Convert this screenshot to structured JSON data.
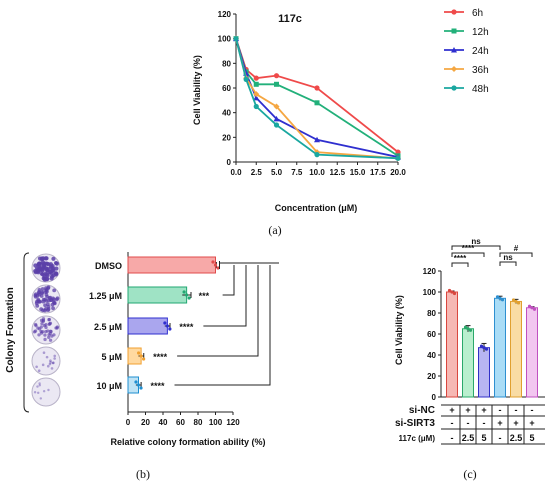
{
  "panel_labels": [
    "(a)",
    "(b)",
    "(c)"
  ],
  "colors": {
    "h6": "#ef4a4a",
    "h12": "#22b07a",
    "h24": "#2f2fcf",
    "h36": "#f5a742",
    "h48": "#1aa7a0",
    "dmso": "#f7a9a8",
    "c125": "#9fe3c5",
    "c25": "#aaa6ee",
    "c5": "#ffd9a0",
    "c10": "#bfe3f5",
    "cNC": "#f6b8b4",
    "cNC25": "#b9efce",
    "cNC5": "#b7b5f2",
    "cS": "#a9dcf6",
    "cS25": "#f9dca4",
    "cS5": "#f2c6f0"
  },
  "chart_data": [
    {
      "type": "line",
      "title": "117c",
      "xlabel": "Concentration (μM)",
      "ylabel": "Cell Viability (%)",
      "xlim": [
        0,
        20
      ],
      "ylim": [
        0,
        120
      ],
      "x_ticks": [
        "0.0",
        "2.5",
        "5.0",
        "7.5",
        "10.0",
        "12.5",
        "15.0",
        "17.5",
        "20.0"
      ],
      "y_ticks": [
        "0",
        "20",
        "40",
        "60",
        "80",
        "100",
        "120"
      ],
      "x": [
        0,
        1.25,
        2.5,
        5,
        10,
        20
      ],
      "series": [
        {
          "name": "6h",
          "values": [
            100,
            75,
            68,
            70,
            60,
            8
          ]
        },
        {
          "name": "12h",
          "values": [
            100,
            73,
            63,
            63,
            48,
            5
          ]
        },
        {
          "name": "24h",
          "values": [
            100,
            72,
            52,
            35,
            18,
            4
          ]
        },
        {
          "name": "36h",
          "values": [
            100,
            68,
            55,
            45,
            8,
            3
          ]
        },
        {
          "name": "48h",
          "values": [
            100,
            67,
            45,
            30,
            6,
            3
          ]
        }
      ],
      "legend": "top-right"
    },
    {
      "type": "bar",
      "orientation": "horizontal",
      "side_label": "Colony Formation",
      "xlabel": "Relative colony formation ability (%)",
      "xlim": [
        0,
        120
      ],
      "x_ticks": [
        "0",
        "20",
        "40",
        "60",
        "80",
        "100",
        "120"
      ],
      "categories": [
        "DMSO",
        "1.25 μM",
        "2.5 μM",
        "5 μM",
        "10 μM"
      ],
      "values": [
        100,
        67,
        45,
        15,
        12
      ],
      "errors": [
        1,
        5,
        3,
        3,
        3
      ],
      "significance": [
        "",
        "***",
        "****",
        "****",
        "****"
      ],
      "colony_density": [
        1.0,
        0.8,
        0.55,
        0.2,
        0.12
      ]
    },
    {
      "type": "bar",
      "ylabel": "Cell Viability (%)",
      "ylim": [
        0,
        120
      ],
      "y_ticks": [
        "0",
        "20",
        "40",
        "60",
        "80",
        "100",
        "120"
      ],
      "values": [
        100,
        65,
        47,
        94,
        91,
        85
      ],
      "errors": [
        1,
        3,
        4,
        2,
        2,
        1
      ],
      "table": {
        "rows": [
          {
            "label": "si-NC",
            "cells": [
              "+",
              "+",
              "+",
              "-",
              "-",
              "-"
            ]
          },
          {
            "label": "si-SIRT3",
            "cells": [
              "-",
              "-",
              "-",
              "+",
              "+",
              "+"
            ]
          },
          {
            "label": "117c (μM)",
            "cells": [
              "-",
              "2.5",
              "5",
              "-",
              "2.5",
              "5"
            ]
          }
        ]
      },
      "brackets": [
        {
          "from": 0,
          "to": 3,
          "text": "ns"
        },
        {
          "from": 0,
          "to": 1,
          "text": "****"
        },
        {
          "from": 0,
          "to": 2,
          "text": "****"
        },
        {
          "from": 3,
          "to": 4,
          "text": "ns"
        },
        {
          "from": 3,
          "to": 5,
          "text": "#"
        }
      ]
    }
  ]
}
